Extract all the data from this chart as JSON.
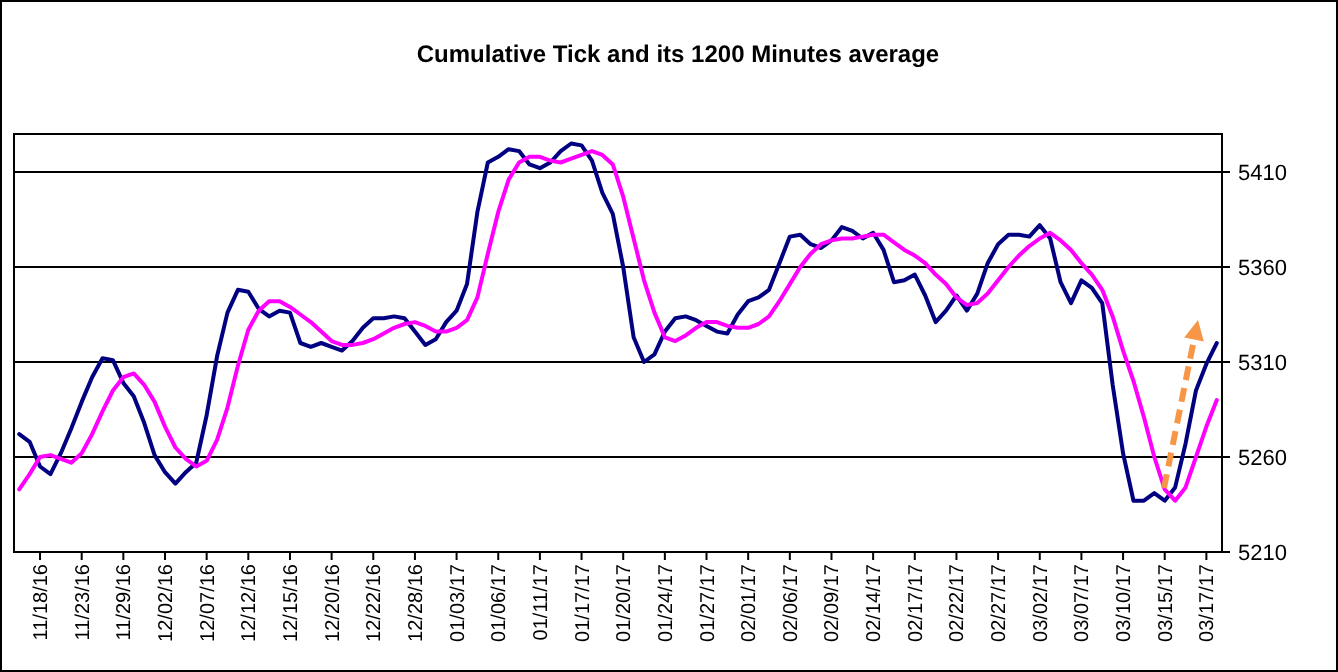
{
  "chart_data": {
    "type": "line",
    "title": "Cumulative Tick and its 1200 Minutes average",
    "categories": [
      null,
      null,
      "11/18/16",
      null,
      null,
      null,
      "11/23/16",
      null,
      null,
      null,
      "11/29/16",
      null,
      null,
      null,
      "12/02/16",
      null,
      null,
      null,
      "12/07/16",
      null,
      null,
      null,
      "12/12/16",
      null,
      null,
      null,
      "12/15/16",
      null,
      null,
      null,
      "12/20/16",
      null,
      null,
      null,
      "12/22/16",
      null,
      null,
      null,
      "12/28/16",
      null,
      null,
      null,
      "01/03/17",
      null,
      null,
      null,
      "01/06/17",
      null,
      null,
      null,
      "01/11/17",
      null,
      null,
      null,
      "01/17/17",
      null,
      null,
      null,
      "01/20/17",
      null,
      null,
      null,
      "01/24/17",
      null,
      null,
      null,
      "01/27/17",
      null,
      null,
      null,
      "02/01/17",
      null,
      null,
      null,
      "02/06/17",
      null,
      null,
      null,
      "02/09/17",
      null,
      null,
      null,
      "02/14/17",
      null,
      null,
      null,
      "02/17/17",
      null,
      null,
      null,
      "02/22/17",
      null,
      null,
      null,
      "02/27/17",
      null,
      null,
      null,
      "03/02/17",
      null,
      null,
      null,
      "03/07/17",
      null,
      null,
      null,
      "03/10/17",
      null,
      null,
      null,
      "03/15/17",
      null,
      null,
      null,
      "03/17/17",
      null
    ],
    "series": [
      {
        "color": "#000080",
        "values": [
          5272,
          5268,
          5255,
          5251,
          5262,
          5275,
          5289,
          5302,
          5312,
          5311,
          5299,
          5292,
          5278,
          5261,
          5252,
          5246,
          5252,
          5257,
          5282,
          5313,
          5336,
          5348,
          5347,
          5338,
          5334,
          5337,
          5336,
          5320,
          5318,
          5320,
          5318,
          5316,
          5321,
          5328,
          5333,
          5333,
          5334,
          5333,
          5326,
          5319,
          5322,
          5331,
          5337,
          5351,
          5389,
          5415,
          5418,
          5422,
          5421,
          5414,
          5412,
          5415,
          5421,
          5425,
          5424,
          5416,
          5399,
          5388,
          5360,
          5323,
          5310,
          5314,
          5326,
          5333,
          5334,
          5332,
          5329,
          5326,
          5325,
          5335,
          5342,
          5344,
          5348,
          5362,
          5376,
          5377,
          5372,
          5370,
          5374,
          5381,
          5379,
          5375,
          5378,
          5369,
          5352,
          5353,
          5356,
          5345,
          5331,
          5337,
          5345,
          5337,
          5346,
          5362,
          5372,
          5377,
          5377,
          5376,
          5382,
          5375,
          5352,
          5341,
          5353,
          5349,
          5341,
          5298,
          5262,
          5237,
          5237,
          5241,
          5237,
          5244,
          5267,
          5295,
          5309,
          5320
        ]
      },
      {
        "color": "#ff00ff",
        "values": [
          5243,
          5251,
          5260,
          5261,
          5259,
          5257,
          5262,
          5272,
          5284,
          5295,
          5302,
          5304,
          5298,
          5289,
          5276,
          5265,
          5259,
          5255,
          5258,
          5269,
          5286,
          5308,
          5327,
          5337,
          5342,
          5342,
          5339,
          5335,
          5331,
          5326,
          5321,
          5319,
          5319,
          5320,
          5322,
          5325,
          5328,
          5330,
          5331,
          5329,
          5326,
          5326,
          5328,
          5332,
          5344,
          5367,
          5389,
          5406,
          5415,
          5418,
          5418,
          5416,
          5415,
          5417,
          5419,
          5421,
          5419,
          5414,
          5397,
          5375,
          5353,
          5336,
          5323,
          5321,
          5324,
          5328,
          5331,
          5331,
          5329,
          5328,
          5328,
          5330,
          5334,
          5342,
          5351,
          5360,
          5367,
          5372,
          5374,
          5375,
          5375,
          5376,
          5377,
          5377,
          5373,
          5369,
          5366,
          5362,
          5356,
          5351,
          5344,
          5340,
          5341,
          5346,
          5353,
          5360,
          5366,
          5371,
          5375,
          5378,
          5374,
          5369,
          5362,
          5356,
          5348,
          5334,
          5316,
          5300,
          5281,
          5260,
          5243,
          5237,
          5244,
          5260,
          5276,
          5290
        ]
      }
    ],
    "ylim": [
      5210,
      5430
    ],
    "yticks": [
      5210,
      5260,
      5310,
      5360,
      5410
    ],
    "grid": "y"
  }
}
